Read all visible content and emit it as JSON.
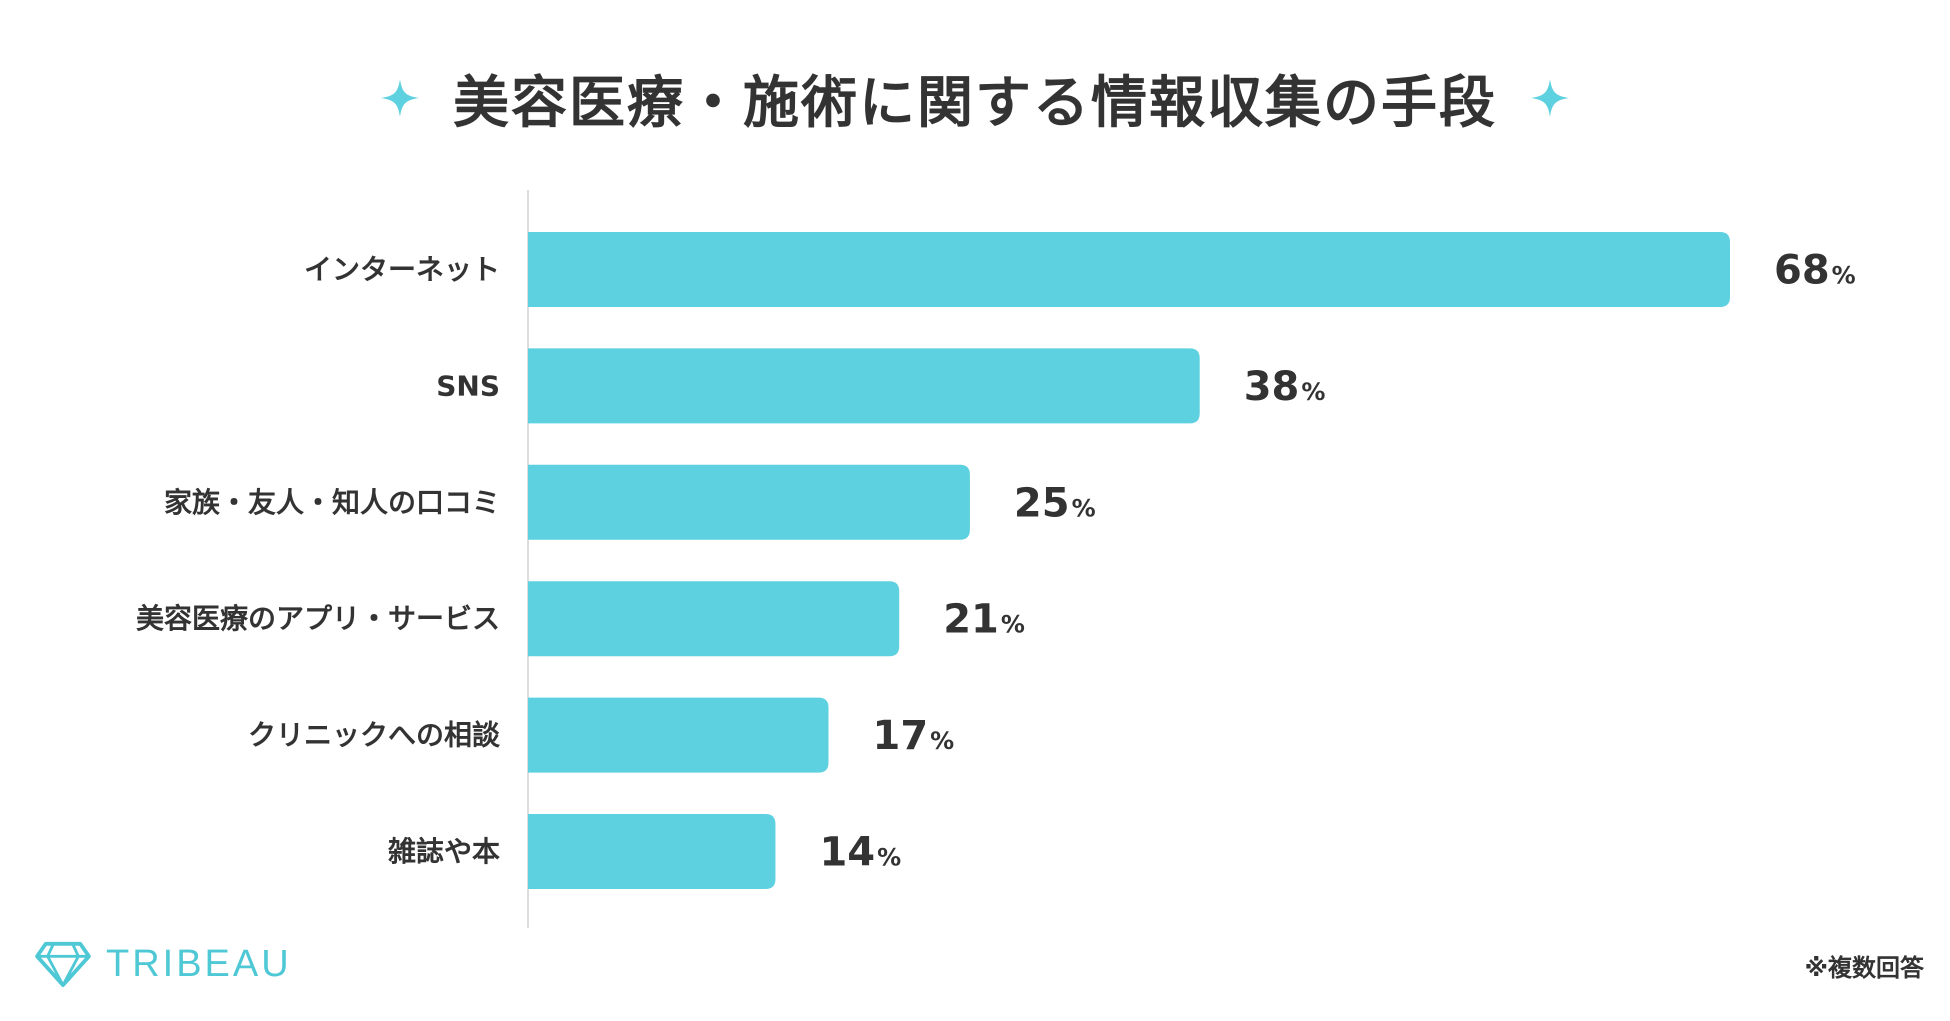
{
  "header": {
    "title": "美容医療・施術に関する情報収集の手段",
    "sparkle_icon": "sparkle-icon"
  },
  "chart_data": {
    "type": "bar",
    "orientation": "horizontal",
    "title": "美容医療・施術に関する情報収集の手段",
    "categories": [
      "インターネット",
      "SNS",
      "家族・友人・知人の口コミ",
      "美容医療のアプリ・サービス",
      "クリニックへの相談",
      "雑誌や本"
    ],
    "values": [
      68,
      38,
      25,
      21,
      17,
      14
    ],
    "unit": "%",
    "xlim": [
      0,
      100
    ],
    "grid": false,
    "legend": "none",
    "bar_color": "#5dd1df"
  },
  "footer": {
    "brand": "TRIBEAU",
    "brand_icon": "diamond-icon",
    "note": "※複数回答"
  },
  "colors": {
    "accent": "#5dd1df",
    "text": "#333333",
    "axis": "#dddddd"
  }
}
